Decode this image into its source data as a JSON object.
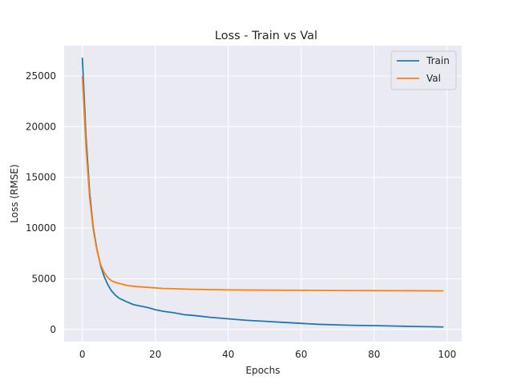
{
  "chart_data": {
    "type": "line",
    "title": "Loss - Train vs Val",
    "xlabel": "Epochs",
    "ylabel": "Loss (RMSE)",
    "xlim": [
      -5,
      104
    ],
    "ylim": [
      -1200,
      28000
    ],
    "xticks": [
      0,
      20,
      40,
      60,
      80,
      100
    ],
    "yticks": [
      0,
      5000,
      10000,
      15000,
      20000,
      25000
    ],
    "grid": true,
    "legend": "top-right",
    "series": [
      {
        "name": "Train",
        "color": "#1f77b4",
        "x": [
          0,
          1,
          2,
          3,
          4,
          5,
          6,
          7,
          8,
          9,
          10,
          12,
          14,
          16,
          18,
          20,
          22,
          25,
          28,
          30,
          35,
          40,
          45,
          50,
          55,
          60,
          65,
          70,
          75,
          80,
          85,
          90,
          95,
          99
        ],
        "y": [
          26800,
          19000,
          13500,
          10000,
          7900,
          6300,
          5200,
          4400,
          3800,
          3400,
          3100,
          2750,
          2450,
          2300,
          2150,
          1950,
          1800,
          1650,
          1450,
          1400,
          1200,
          1050,
          900,
          800,
          700,
          600,
          500,
          450,
          400,
          380,
          340,
          300,
          270,
          240
        ]
      },
      {
        "name": "Val",
        "color": "#ff7f0e",
        "x": [
          0,
          1,
          2,
          3,
          4,
          5,
          6,
          7,
          8,
          9,
          10,
          12,
          14,
          16,
          18,
          20,
          22,
          25,
          28,
          30,
          35,
          40,
          45,
          50,
          55,
          60,
          65,
          70,
          75,
          80,
          85,
          90,
          95,
          99
        ],
        "y": [
          25000,
          18000,
          13000,
          9800,
          7800,
          6400,
          5600,
          5100,
          4800,
          4650,
          4550,
          4350,
          4250,
          4200,
          4150,
          4100,
          4050,
          4020,
          3980,
          3960,
          3930,
          3900,
          3890,
          3880,
          3870,
          3860,
          3850,
          3840,
          3830,
          3825,
          3820,
          3815,
          3810,
          3800
        ]
      }
    ]
  }
}
